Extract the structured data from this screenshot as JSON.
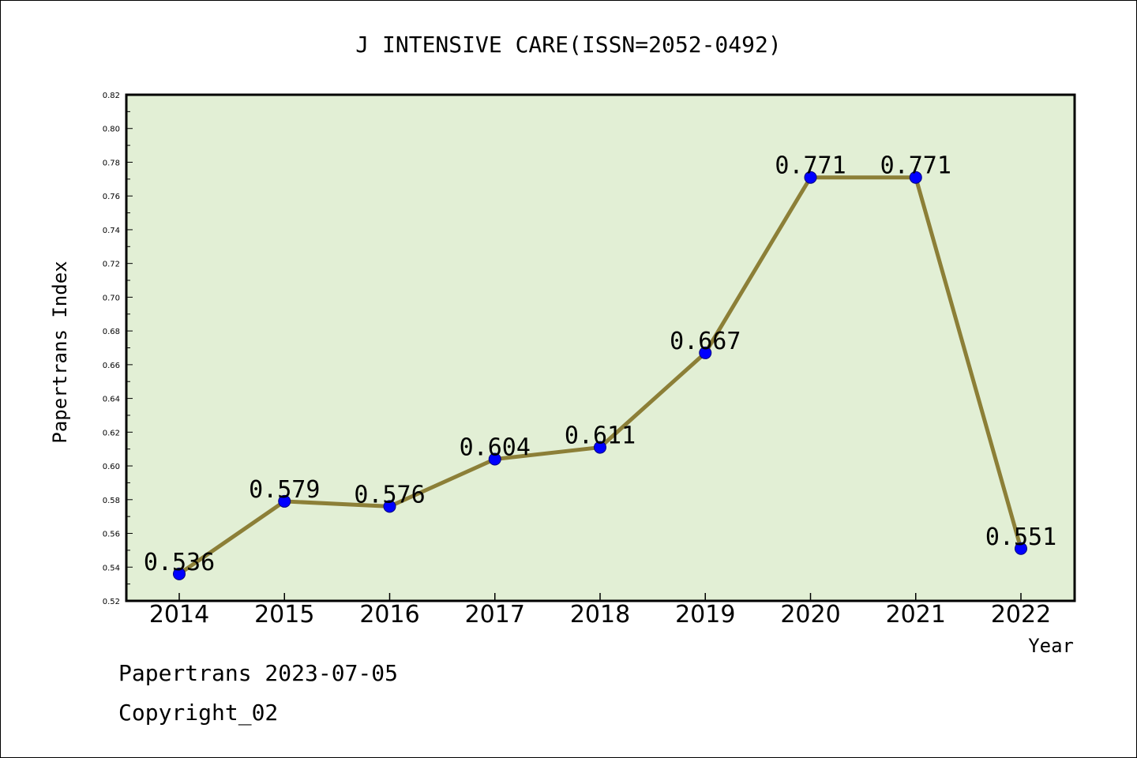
{
  "colors": {
    "plot_background": "#e2efd5",
    "line": "#8c7f37",
    "marker_fill": "#0000ff",
    "marker_edge": "#000080",
    "axis": "#000000"
  },
  "footer": {
    "line1": "Papertrans 2023-07-05",
    "line2": "Copyright_02"
  },
  "chart_data": {
    "type": "line",
    "title": "J INTENSIVE CARE(ISSN=2052-0492)",
    "xlabel": "Year",
    "ylabel": "Papertrans Index",
    "categories": [
      "2014",
      "2015",
      "2016",
      "2017",
      "2018",
      "2019",
      "2020",
      "2021",
      "2022"
    ],
    "series": [
      {
        "values": [
          0.536,
          0.579,
          0.576,
          0.604,
          0.611,
          0.667,
          0.771,
          0.771,
          0.551
        ],
        "labels": [
          "0.536",
          "0.579",
          "0.576",
          "0.604",
          "0.611",
          "0.667",
          "0.771",
          "0.771",
          "0.551"
        ]
      }
    ],
    "ylim": [
      0.52,
      0.82
    ],
    "yticks": [
      "0.52",
      "0.54",
      "0.56",
      "0.58",
      "0.60",
      "0.62",
      "0.64",
      "0.66",
      "0.68",
      "0.70",
      "0.72",
      "0.74",
      "0.76",
      "0.78",
      "0.80",
      "0.82"
    ],
    "grid": false,
    "legend": "none"
  }
}
